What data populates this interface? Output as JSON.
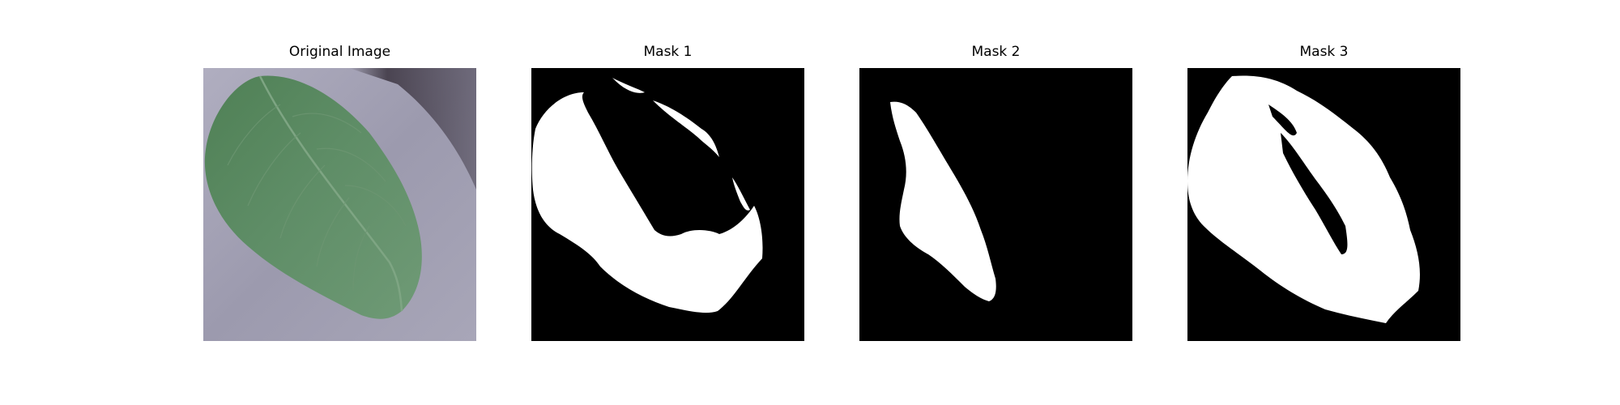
{
  "figure": {
    "panels": [
      {
        "title": "Original Image",
        "content": "leaf-photo"
      },
      {
        "title": "Mask 1",
        "content": "segmentation-mask"
      },
      {
        "title": "Mask 2",
        "content": "segmentation-mask"
      },
      {
        "title": "Mask 3",
        "content": "segmentation-mask"
      }
    ],
    "colors": {
      "background": "#ffffff",
      "mask_foreground": "#ffffff",
      "mask_background": "#000000",
      "photo_backdrop": "#9c9aae",
      "leaf_green": "#5b8a63",
      "shadow": "#3b3440"
    }
  }
}
